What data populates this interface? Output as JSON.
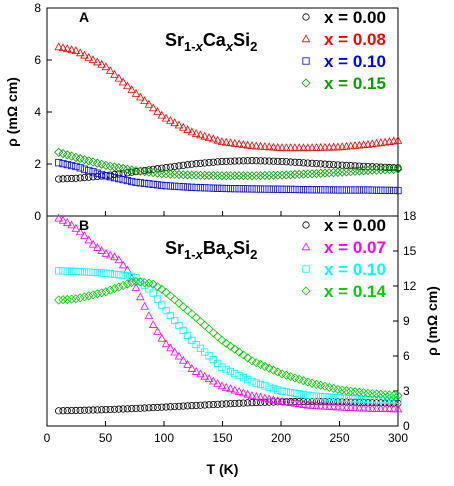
{
  "chart_data": [
    {
      "type": "scatter",
      "panel": "A",
      "formula": {
        "base1": "Sr",
        "sub1": "1-",
        "subx": "x",
        "base2": "Ca",
        "subx2": "x",
        "base3": "Si",
        "sub3": "2"
      },
      "xlabel": "T (K)",
      "ylabel": "ρ (mΩ cm)",
      "xlim": [
        0,
        300
      ],
      "ylim": [
        0,
        8
      ],
      "yticks": [
        "0",
        "2",
        "4",
        "6",
        "8"
      ],
      "axis_side": "left",
      "legend_placement": "top-right",
      "grid": false,
      "series": [
        {
          "name": "x = 0.00",
          "color": "#000000",
          "marker": "circle",
          "x": [
            10,
            25,
            50,
            75,
            100,
            125,
            150,
            175,
            200,
            225,
            250,
            275,
            300
          ],
          "y": [
            1.42,
            1.45,
            1.55,
            1.7,
            1.85,
            2.0,
            2.1,
            2.13,
            2.1,
            2.03,
            1.96,
            1.9,
            1.85
          ]
        },
        {
          "name": "x = 0.08",
          "color": "#ff0000",
          "marker": "triangle",
          "x": [
            10,
            25,
            50,
            75,
            100,
            125,
            150,
            175,
            200,
            225,
            250,
            275,
            300
          ],
          "y": [
            6.5,
            6.35,
            5.75,
            4.75,
            3.8,
            3.2,
            2.85,
            2.7,
            2.62,
            2.62,
            2.65,
            2.75,
            2.9
          ]
        },
        {
          "name": "x = 0.10",
          "color": "#0000ff",
          "marker": "square",
          "x": [
            10,
            25,
            50,
            75,
            100,
            125,
            150,
            175,
            200,
            225,
            250,
            275,
            300
          ],
          "y": [
            2.05,
            1.9,
            1.55,
            1.3,
            1.17,
            1.1,
            1.06,
            1.04,
            1.03,
            1.01,
            1.0,
            1.0,
            0.98
          ]
        },
        {
          "name": "x = 0.15",
          "color": "#00a000",
          "marker": "diamond",
          "x": [
            10,
            25,
            50,
            75,
            100,
            125,
            150,
            175,
            200,
            225,
            250,
            275,
            300
          ],
          "y": [
            2.45,
            2.25,
            1.95,
            1.75,
            1.62,
            1.57,
            1.55,
            1.55,
            1.57,
            1.62,
            1.68,
            1.75,
            1.8
          ]
        }
      ]
    },
    {
      "type": "scatter",
      "panel": "B",
      "formula": {
        "base1": "Sr",
        "sub1": "1-",
        "subx": "x",
        "base2": "Ba",
        "subx2": "x",
        "base3": "Si",
        "sub3": "2"
      },
      "xlabel": "T (K)",
      "ylabel": "ρ (mΩ cm)",
      "xlim": [
        0,
        300
      ],
      "ylim": [
        0,
        18
      ],
      "xticks": [
        "0",
        "50",
        "100",
        "150",
        "200",
        "250",
        "300"
      ],
      "yticks": [
        "0",
        "3",
        "6",
        "9",
        "12",
        "15",
        "18"
      ],
      "axis_side": "right",
      "legend_placement": "top-right",
      "grid": false,
      "series": [
        {
          "name": "x = 0.00",
          "color": "#000000",
          "marker": "circle",
          "x": [
            10,
            25,
            50,
            75,
            100,
            125,
            150,
            175,
            200,
            225,
            250,
            275,
            300
          ],
          "y": [
            1.3,
            1.33,
            1.4,
            1.5,
            1.62,
            1.75,
            1.88,
            2.0,
            2.08,
            2.1,
            2.07,
            2.0,
            1.95
          ]
        },
        {
          "name": "x = 0.07",
          "color": "#ff00ff",
          "marker": "triangle",
          "x": [
            10,
            20,
            30,
            40,
            50,
            60,
            70,
            80,
            90,
            100,
            125,
            150,
            175,
            200,
            225,
            250,
            275,
            300
          ],
          "y": [
            17.8,
            17.3,
            16.5,
            15.5,
            14.8,
            14.4,
            13.2,
            11.0,
            8.8,
            7.2,
            4.8,
            3.4,
            2.6,
            2.1,
            1.75,
            1.6,
            1.5,
            1.45
          ]
        },
        {
          "name": "x = 0.10",
          "color": "#00ffff",
          "marker": "square",
          "x": [
            10,
            25,
            50,
            75,
            90,
            100,
            125,
            150,
            175,
            200,
            225,
            250,
            275,
            300
          ],
          "y": [
            13.3,
            13.25,
            13.1,
            12.8,
            11.5,
            10.1,
            7.2,
            5.0,
            3.8,
            3.0,
            2.6,
            2.4,
            2.25,
            2.2
          ]
        },
        {
          "name": "x = 0.14",
          "color": "#00cc00",
          "marker": "diamond",
          "x": [
            10,
            25,
            50,
            75,
            90,
            100,
            125,
            150,
            175,
            200,
            225,
            250,
            275,
            300
          ],
          "y": [
            10.8,
            10.9,
            11.5,
            12.4,
            12.2,
            11.6,
            9.5,
            7.3,
            5.6,
            4.5,
            3.7,
            3.1,
            2.8,
            2.6
          ]
        }
      ]
    }
  ]
}
